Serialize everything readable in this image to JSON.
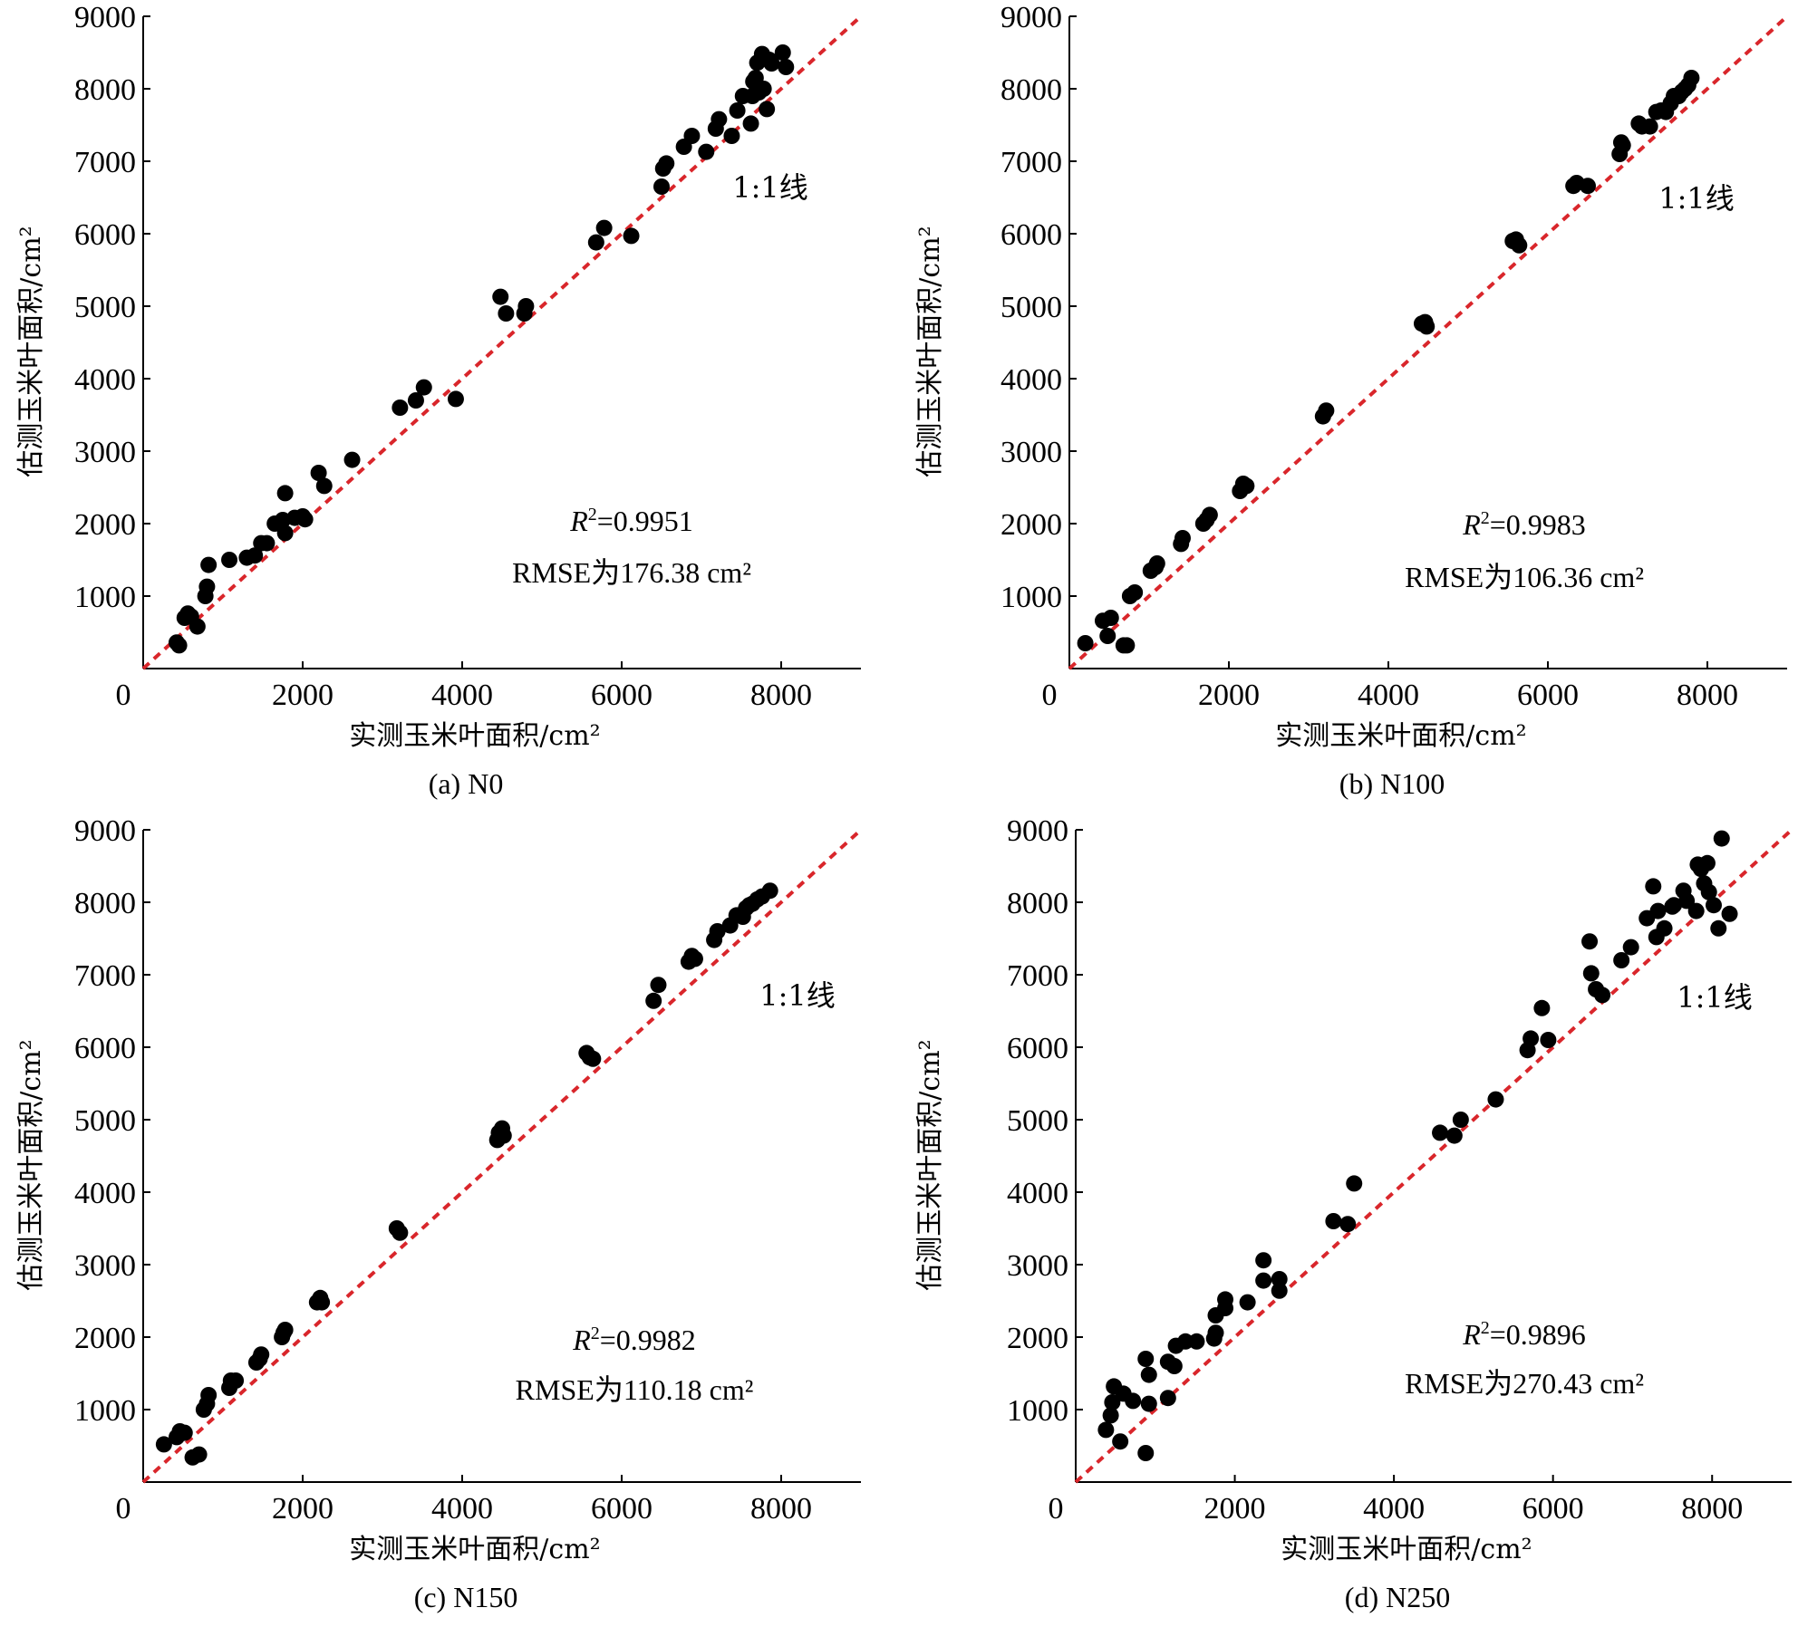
{
  "chart_data": [
    {
      "type": "scatter",
      "caption": "(a) N0",
      "xlabel": "实测玉米叶面积/cm²",
      "ylabel": "估测玉米叶面积/cm²",
      "xlim": [
        0,
        9000
      ],
      "ylim": [
        0,
        9000
      ],
      "xticks": [
        0,
        2000,
        4000,
        6000,
        8000
      ],
      "yticks": [
        1000,
        2000,
        3000,
        4000,
        5000,
        6000,
        7000,
        8000,
        9000
      ],
      "reference_line_label": "1:1线",
      "r2_label": "=0.9951",
      "rmse_label": "RMSE为176.38 cm²",
      "points": [
        [
          420,
          360
        ],
        [
          450,
          320
        ],
        [
          520,
          700
        ],
        [
          560,
          760
        ],
        [
          600,
          720
        ],
        [
          680,
          580
        ],
        [
          780,
          1000
        ],
        [
          800,
          1130
        ],
        [
          820,
          1430
        ],
        [
          1080,
          1500
        ],
        [
          1300,
          1530
        ],
        [
          1400,
          1560
        ],
        [
          1480,
          1730
        ],
        [
          1550,
          1730
        ],
        [
          1650,
          2000
        ],
        [
          1750,
          2050
        ],
        [
          1780,
          2420
        ],
        [
          1780,
          1870
        ],
        [
          1900,
          2080
        ],
        [
          2000,
          2100
        ],
        [
          2030,
          2060
        ],
        [
          2200,
          2700
        ],
        [
          2270,
          2520
        ],
        [
          2620,
          2880
        ],
        [
          3220,
          3600
        ],
        [
          3420,
          3700
        ],
        [
          3520,
          3880
        ],
        [
          3920,
          3720
        ],
        [
          4480,
          5130
        ],
        [
          4550,
          4900
        ],
        [
          4780,
          4900
        ],
        [
          4800,
          5000
        ],
        [
          5680,
          5880
        ],
        [
          5780,
          6080
        ],
        [
          6120,
          5970
        ],
        [
          6500,
          6650
        ],
        [
          6520,
          6900
        ],
        [
          6560,
          6970
        ],
        [
          6780,
          7200
        ],
        [
          6880,
          7350
        ],
        [
          7060,
          7130
        ],
        [
          7180,
          7450
        ],
        [
          7220,
          7580
        ],
        [
          7380,
          7350
        ],
        [
          7450,
          7700
        ],
        [
          7520,
          7900
        ],
        [
          7620,
          7520
        ],
        [
          7640,
          7900
        ],
        [
          7650,
          8100
        ],
        [
          7680,
          8150
        ],
        [
          7700,
          8360
        ],
        [
          7720,
          7950
        ],
        [
          7760,
          8480
        ],
        [
          7780,
          8000
        ],
        [
          7820,
          7720
        ],
        [
          7850,
          8400
        ],
        [
          7880,
          8350
        ],
        [
          8020,
          8500
        ],
        [
          8060,
          8300
        ]
      ]
    },
    {
      "type": "scatter",
      "caption": "(b) N100",
      "xlabel": "实测玉米叶面积/cm²",
      "ylabel": "估测玉米叶面积/cm²",
      "xlim": [
        0,
        9000
      ],
      "ylim": [
        0,
        9000
      ],
      "xticks": [
        0,
        2000,
        4000,
        6000,
        8000
      ],
      "yticks": [
        1000,
        2000,
        3000,
        4000,
        5000,
        6000,
        7000,
        8000,
        9000
      ],
      "reference_line_label": "1:1线",
      "r2_label": "=0.9983",
      "rmse_label": "RMSE为106.36 cm²",
      "points": [
        [
          200,
          350
        ],
        [
          420,
          660
        ],
        [
          480,
          450
        ],
        [
          520,
          700
        ],
        [
          680,
          320
        ],
        [
          720,
          320
        ],
        [
          760,
          1000
        ],
        [
          820,
          1050
        ],
        [
          1020,
          1350
        ],
        [
          1080,
          1400
        ],
        [
          1100,
          1450
        ],
        [
          1400,
          1720
        ],
        [
          1420,
          1800
        ],
        [
          1680,
          2000
        ],
        [
          1720,
          2050
        ],
        [
          1760,
          2120
        ],
        [
          2140,
          2450
        ],
        [
          2180,
          2550
        ],
        [
          2220,
          2520
        ],
        [
          3180,
          3480
        ],
        [
          3220,
          3560
        ],
        [
          4420,
          4760
        ],
        [
          4460,
          4780
        ],
        [
          4480,
          4720
        ],
        [
          5560,
          5900
        ],
        [
          5600,
          5920
        ],
        [
          5640,
          5840
        ],
        [
          6320,
          6660
        ],
        [
          6360,
          6700
        ],
        [
          6500,
          6660
        ],
        [
          6900,
          7100
        ],
        [
          6920,
          7260
        ],
        [
          6940,
          7220
        ],
        [
          7140,
          7520
        ],
        [
          7180,
          7480
        ],
        [
          7280,
          7480
        ],
        [
          7360,
          7680
        ],
        [
          7420,
          7700
        ],
        [
          7480,
          7680
        ],
        [
          7540,
          7800
        ],
        [
          7580,
          7900
        ],
        [
          7640,
          7900
        ],
        [
          7680,
          7960
        ],
        [
          7720,
          8000
        ],
        [
          7760,
          8050
        ],
        [
          7800,
          8150
        ]
      ]
    },
    {
      "type": "scatter",
      "caption": "(c) N150",
      "xlabel": "实测玉米叶面积/cm²",
      "ylabel": "估测玉米叶面积/cm²",
      "xlim": [
        0,
        9000
      ],
      "ylim": [
        0,
        9000
      ],
      "xticks": [
        0,
        2000,
        4000,
        6000,
        8000
      ],
      "yticks": [
        1000,
        2000,
        3000,
        4000,
        5000,
        6000,
        7000,
        8000,
        9000
      ],
      "reference_line_label": "1:1线",
      "r2_label": "=0.9982",
      "rmse_label": "RMSE为110.18 cm²",
      "points": [
        [
          260,
          520
        ],
        [
          420,
          620
        ],
        [
          460,
          700
        ],
        [
          520,
          680
        ],
        [
          620,
          340
        ],
        [
          700,
          380
        ],
        [
          760,
          1000
        ],
        [
          800,
          1080
        ],
        [
          820,
          1200
        ],
        [
          1080,
          1300
        ],
        [
          1100,
          1400
        ],
        [
          1160,
          1400
        ],
        [
          1420,
          1650
        ],
        [
          1460,
          1700
        ],
        [
          1480,
          1760
        ],
        [
          1740,
          2000
        ],
        [
          1760,
          2060
        ],
        [
          1780,
          2100
        ],
        [
          2180,
          2480
        ],
        [
          2220,
          2540
        ],
        [
          2240,
          2480
        ],
        [
          3180,
          3500
        ],
        [
          3220,
          3440
        ],
        [
          4440,
          4720
        ],
        [
          4460,
          4820
        ],
        [
          4500,
          4880
        ],
        [
          4520,
          4780
        ],
        [
          5560,
          5920
        ],
        [
          5600,
          5860
        ],
        [
          5640,
          5840
        ],
        [
          6400,
          6640
        ],
        [
          6460,
          6860
        ],
        [
          6840,
          7180
        ],
        [
          6880,
          7260
        ],
        [
          6920,
          7220
        ],
        [
          7160,
          7480
        ],
        [
          7200,
          7600
        ],
        [
          7360,
          7680
        ],
        [
          7440,
          7820
        ],
        [
          7520,
          7800
        ],
        [
          7560,
          7920
        ],
        [
          7600,
          7960
        ],
        [
          7640,
          7980
        ],
        [
          7700,
          8040
        ],
        [
          7760,
          8080
        ],
        [
          7860,
          8160
        ]
      ]
    },
    {
      "type": "scatter",
      "caption": "(d) N250",
      "xlabel": "实测玉米叶面积/cm²",
      "ylabel": "估测玉米叶面积/cm²",
      "xlim": [
        0,
        9000
      ],
      "ylim": [
        0,
        9000
      ],
      "xticks": [
        0,
        2000,
        4000,
        6000,
        8000
      ],
      "yticks": [
        1000,
        2000,
        3000,
        4000,
        5000,
        6000,
        7000,
        8000,
        9000
      ],
      "reference_line_label": "1:1线",
      "r2_label": "=0.9896",
      "rmse_label": "RMSE为270.43 cm²",
      "points": [
        [
          380,
          720
        ],
        [
          440,
          920
        ],
        [
          460,
          1100
        ],
        [
          480,
          1320
        ],
        [
          560,
          560
        ],
        [
          600,
          1220
        ],
        [
          720,
          1120
        ],
        [
          880,
          400
        ],
        [
          880,
          1700
        ],
        [
          920,
          1080
        ],
        [
          920,
          1480
        ],
        [
          1160,
          1160
        ],
        [
          1160,
          1660
        ],
        [
          1240,
          1600
        ],
        [
          1260,
          1880
        ],
        [
          1380,
          1940
        ],
        [
          1520,
          1940
        ],
        [
          1740,
          1980
        ],
        [
          1760,
          2060
        ],
        [
          1760,
          2300
        ],
        [
          1880,
          2400
        ],
        [
          1880,
          2520
        ],
        [
          2160,
          2480
        ],
        [
          2360,
          2780
        ],
        [
          2360,
          3060
        ],
        [
          2560,
          2640
        ],
        [
          2560,
          2800
        ],
        [
          3240,
          3600
        ],
        [
          3420,
          3560
        ],
        [
          3500,
          4120
        ],
        [
          4580,
          4820
        ],
        [
          4760,
          4780
        ],
        [
          4840,
          5000
        ],
        [
          5280,
          5280
        ],
        [
          5680,
          5960
        ],
        [
          5720,
          6120
        ],
        [
          5860,
          6540
        ],
        [
          5940,
          6100
        ],
        [
          6460,
          7460
        ],
        [
          6480,
          7020
        ],
        [
          6540,
          6800
        ],
        [
          6620,
          6720
        ],
        [
          6860,
          7200
        ],
        [
          6980,
          7380
        ],
        [
          7180,
          7780
        ],
        [
          7260,
          8220
        ],
        [
          7300,
          7520
        ],
        [
          7320,
          7880
        ],
        [
          7400,
          7640
        ],
        [
          7500,
          7940
        ],
        [
          7520,
          7960
        ],
        [
          7640,
          8160
        ],
        [
          7680,
          8020
        ],
        [
          7800,
          7880
        ],
        [
          7820,
          8520
        ],
        [
          7860,
          8460
        ],
        [
          7900,
          8260
        ],
        [
          7940,
          8540
        ],
        [
          7960,
          8140
        ],
        [
          8020,
          7960
        ],
        [
          8080,
          7640
        ],
        [
          8120,
          8880
        ],
        [
          8220,
          7840
        ]
      ]
    }
  ]
}
